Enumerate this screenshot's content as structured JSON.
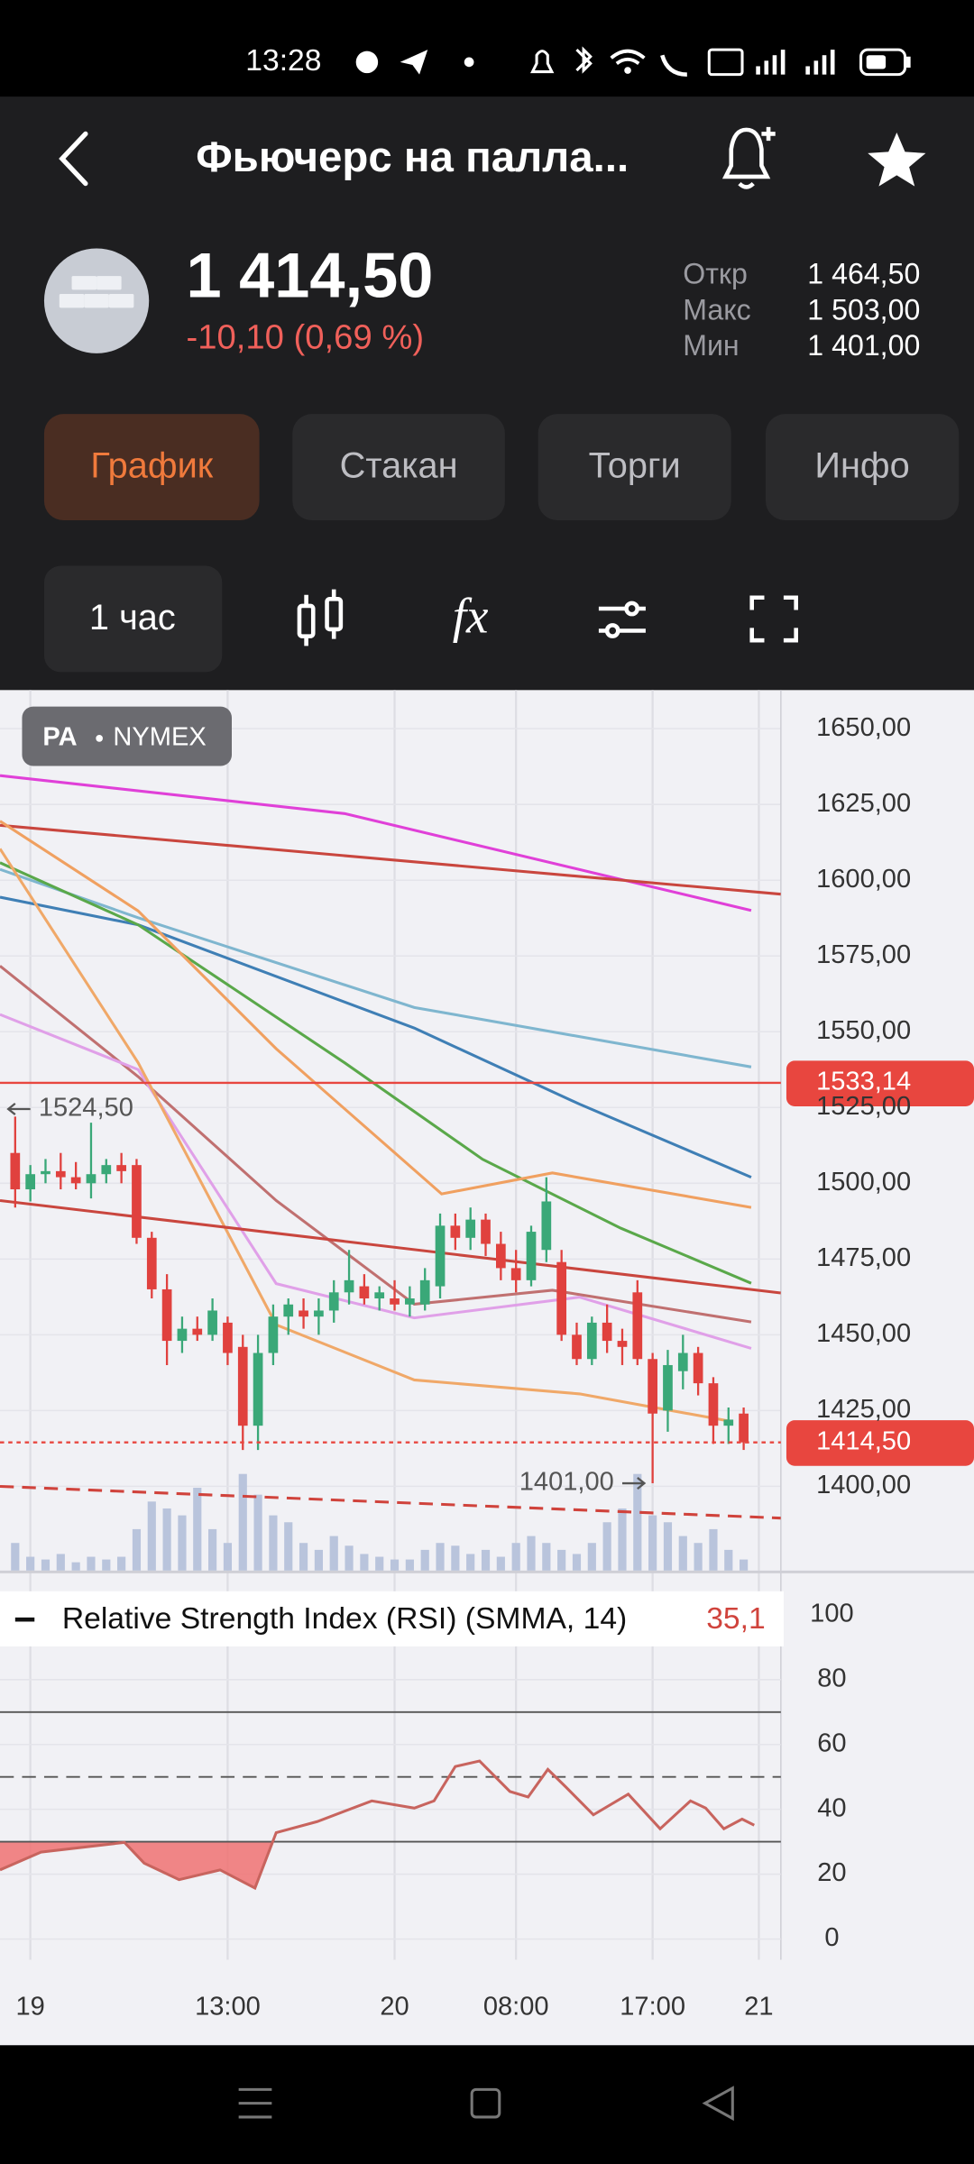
{
  "status_bar": {
    "time": "13:28"
  },
  "header": {
    "title": "Фьючерс на палла..."
  },
  "quote": {
    "price": "1 414,50",
    "change": "-10,10 (0,69 %)",
    "stats": [
      {
        "label": "Откр",
        "value": "1 464,50"
      },
      {
        "label": "Макс",
        "value": "1 503,00"
      },
      {
        "label": "Мин",
        "value": "1 401,00"
      }
    ]
  },
  "tabs": [
    "График",
    "Стакан",
    "Торги",
    "Инфо"
  ],
  "active_tab": 0,
  "toolbar": {
    "interval": "1 час",
    "formula_icon": "fx"
  },
  "chart_data": [
    {
      "type": "candlestick",
      "symbol": "PA",
      "exchange": "NYMEX",
      "up_color": "#3aa878",
      "down_color": "#e0413e",
      "volume_color": "#b9c4dc",
      "x": [
        -1,
        0,
        1,
        2,
        3,
        4,
        5,
        6,
        7,
        8,
        9,
        10,
        11,
        12,
        13,
        14,
        15,
        16,
        17,
        18,
        19,
        20,
        21,
        22,
        23,
        24,
        25,
        26,
        27,
        28,
        29,
        30,
        31,
        32,
        33,
        34,
        35,
        36,
        37,
        38,
        39,
        40,
        41,
        42,
        43,
        44,
        45,
        46,
        47
      ],
      "open": [
        1510,
        1498,
        1503,
        1504,
        1502,
        1500,
        1503,
        1506,
        1506,
        1482,
        1465,
        1448,
        1452,
        1450,
        1454,
        1446,
        1420,
        1444,
        1456,
        1458,
        1456,
        1458,
        1464,
        1466,
        1462,
        1462,
        1460,
        1460,
        1466,
        1486,
        1482,
        1488,
        1480,
        1472,
        1468,
        1478,
        1474,
        1450,
        1442,
        1454,
        1448,
        1464,
        1442,
        1425,
        1438,
        1444,
        1434,
        1420,
        1424
      ],
      "high": [
        1522,
        1506,
        1508,
        1510,
        1507,
        1520,
        1508,
        1510,
        1508,
        1484,
        1470,
        1456,
        1456,
        1462,
        1456,
        1450,
        1450,
        1460,
        1462,
        1462,
        1462,
        1468,
        1478,
        1470,
        1466,
        1468,
        1466,
        1472,
        1490,
        1490,
        1492,
        1490,
        1484,
        1478,
        1486,
        1502,
        1478,
        1454,
        1456,
        1460,
        1452,
        1468,
        1444,
        1445,
        1450,
        1446,
        1436,
        1426,
        1426
      ],
      "low": [
        1492,
        1494,
        1500,
        1498,
        1498,
        1495,
        1500,
        1500,
        1480,
        1462,
        1440,
        1444,
        1448,
        1448,
        1440,
        1412,
        1412,
        1440,
        1450,
        1452,
        1450,
        1454,
        1460,
        1460,
        1458,
        1458,
        1456,
        1458,
        1462,
        1478,
        1478,
        1476,
        1468,
        1464,
        1466,
        1474,
        1448,
        1440,
        1440,
        1444,
        1440,
        1440,
        1401,
        1418,
        1432,
        1430,
        1414,
        1414,
        1412
      ],
      "close": [
        1498,
        1503,
        1504,
        1502,
        1500,
        1503,
        1506,
        1504,
        1482,
        1465,
        1448,
        1452,
        1450,
        1458,
        1444,
        1420,
        1444,
        1456,
        1460,
        1456,
        1458,
        1464,
        1468,
        1462,
        1464,
        1460,
        1462,
        1468,
        1486,
        1482,
        1488,
        1480,
        1472,
        1468,
        1484,
        1494,
        1450,
        1442,
        1454,
        1448,
        1446,
        1442,
        1424,
        1440,
        1444,
        1434,
        1420,
        1422,
        1414.5
      ],
      "volume": [
        20,
        10,
        8,
        12,
        6,
        10,
        8,
        10,
        30,
        50,
        45,
        40,
        60,
        30,
        20,
        70,
        55,
        40,
        35,
        20,
        15,
        25,
        18,
        12,
        10,
        8,
        8,
        15,
        20,
        18,
        12,
        15,
        10,
        20,
        25,
        20,
        15,
        12,
        20,
        35,
        45,
        70,
        40,
        35,
        25,
        20,
        30,
        15,
        8
      ],
      "xlim": [
        -2,
        49.45
      ],
      "ylim": [
        1372.2,
        1662.75
      ],
      "yticks": [
        {
          "value": 1650,
          "label": "1650,00"
        },
        {
          "value": 1625,
          "label": "1625,00"
        },
        {
          "value": 1600,
          "label": "1600,00"
        },
        {
          "value": 1575,
          "label": "1575,00"
        },
        {
          "value": 1550,
          "label": "1550,00"
        },
        {
          "value": 1525,
          "label": "1525,00"
        },
        {
          "value": 1500,
          "label": "1500,00"
        },
        {
          "value": 1475,
          "label": "1475,00"
        },
        {
          "value": 1450,
          "label": "1450,00"
        },
        {
          "value": 1425,
          "label": "1425,00"
        },
        {
          "value": 1400,
          "label": "1400,00"
        }
      ],
      "lines": [
        {
          "color": "#e040d8",
          "style": "solid",
          "x": [
            -2,
            20.7,
            47.5
          ],
          "values": [
            1634.5,
            1622,
            1590
          ]
        },
        {
          "color": "#c9463e",
          "style": "solid",
          "x": [
            -2,
            49.45
          ],
          "values": [
            1618.1,
            1595.4
          ]
        },
        {
          "color": "#7fb6cf",
          "style": "solid",
          "x": [
            -2,
            7.1,
            25.3,
            47.5
          ],
          "values": [
            1603.6,
            1587.6,
            1558,
            1538.4
          ]
        },
        {
          "color": "#3f7fb5",
          "style": "solid",
          "x": [
            -2,
            7.1,
            25.3,
            36.2,
            47.5
          ],
          "values": [
            1594.4,
            1585.3,
            1551.2,
            1526.1,
            1502
          ]
        },
        {
          "color": "#5aa84a",
          "style": "solid",
          "x": [
            -2,
            7.1,
            20.7,
            29.8,
            38.9,
            47.5
          ],
          "values": [
            1605.8,
            1585.3,
            1539.8,
            1507.9,
            1485.2,
            1467
          ]
        },
        {
          "color": "#f0a060",
          "style": "solid",
          "x": [
            -2,
            7.1,
            16.2,
            27.1,
            34.4,
            47.5
          ],
          "values": [
            1619.5,
            1589.9,
            1544.4,
            1496.5,
            1503.4,
            1492
          ]
        },
        {
          "color": "#c07070",
          "style": "solid",
          "x": [
            -2,
            7.1,
            16.2,
            25.3,
            34.4,
            47.5
          ],
          "values": [
            1571.7,
            1535.2,
            1494.3,
            1460.1,
            1464.7,
            1454.2
          ]
        },
        {
          "color": "#e0a0e8",
          "style": "solid",
          "x": [
            -2,
            7.1,
            16.2,
            25.3,
            36.2,
            47.5
          ],
          "values": [
            1555.7,
            1537.5,
            1466.9,
            1455.6,
            1462.4,
            1445.5
          ]
        },
        {
          "color": "#f0a868",
          "style": "solid",
          "x": [
            -2,
            7.1,
            16.2,
            25.3,
            36.2,
            46.2
          ],
          "values": [
            1610.4,
            1539.8,
            1453.3,
            1435.1,
            1430.5,
            1421.4
          ]
        },
        {
          "color": "#c9463e",
          "style": "solid",
          "x": [
            -2,
            49.45
          ],
          "values": [
            1494.3,
            1463.8
          ]
        },
        {
          "color": "#d0433c",
          "style": "dashed",
          "x": [
            -2,
            49.45
          ],
          "values": [
            1400,
            1389.5
          ]
        }
      ],
      "levels": [
        {
          "value": 1533.14,
          "label": "1533,14",
          "color": "#e8463f",
          "style": "solid"
        },
        {
          "value": 1414.5,
          "label": "1414,50",
          "color": "#e8463f",
          "style": "dotted"
        }
      ],
      "annotations": [
        {
          "x": -2,
          "value": 1524.5,
          "label": "1524,50",
          "arrow": "left"
        },
        {
          "x": 41,
          "value": 1401,
          "label": "1401,00",
          "arrow": "right"
        }
      ]
    },
    {
      "type": "line",
      "title": "Relative Strength Index (RSI) (SMMA, 14)",
      "current": {
        "value": 35.1,
        "label": "35,1"
      },
      "color": "#c8645e",
      "fill_color": "#f07272",
      "fill_below": 30,
      "x": [
        -2,
        0.7,
        6.2,
        7.5,
        9.8,
        12.5,
        14.8,
        16.2,
        18.9,
        22.5,
        25.3,
        26.6,
        28,
        29.6,
        31.6,
        32.8,
        34.1,
        35.3,
        37.1,
        39.4,
        41.5,
        43.5,
        44.5,
        45.7,
        46.9,
        47.7
      ],
      "values": [
        21.3,
        26.8,
        29.8,
        23.4,
        18.3,
        21.3,
        15.7,
        32.8,
        36.2,
        42.6,
        40.4,
        42.6,
        53.2,
        54.9,
        45.5,
        43.8,
        52.3,
        46.8,
        38.3,
        44.7,
        34,
        42.6,
        40.4,
        34,
        37,
        35.1
      ],
      "xlim": [
        -2,
        49.45
      ],
      "ylim": [
        -6.4,
        112.8
      ],
      "yticks": [
        0,
        20,
        40,
        60,
        80,
        100
      ],
      "levels": [
        {
          "value": 70,
          "style": "solid"
        },
        {
          "value": 50,
          "style": "dashed"
        },
        {
          "value": 30,
          "style": "solid"
        }
      ],
      "xticks": [
        {
          "value": 0,
          "label": "19"
        },
        {
          "value": 13,
          "label": "13:00"
        },
        {
          "value": 24,
          "label": "20"
        },
        {
          "value": 32,
          "label": "08:00"
        },
        {
          "value": 41,
          "label": "17:00"
        },
        {
          "value": 48,
          "label": "21"
        }
      ]
    }
  ]
}
